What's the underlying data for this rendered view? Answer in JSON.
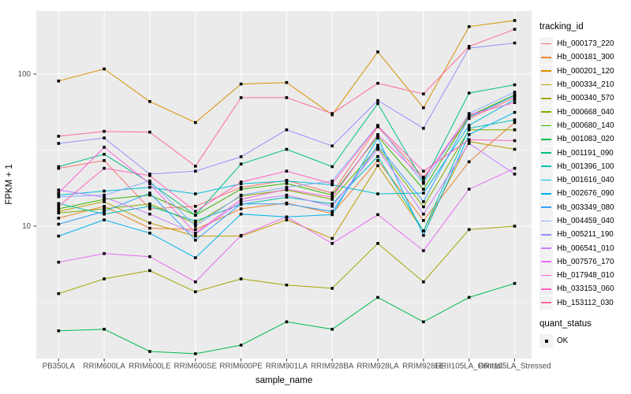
{
  "figure": {
    "panel_bg": "#EBEBEB",
    "grid_color": "#FFFFFF",
    "marker_color": "#000000",
    "tick_color": "#333333",
    "tick_label_color": "#4D4D4D"
  },
  "axes": {
    "x_title": "sample_name",
    "y_title": "FPKM + 1",
    "y_ticks": [
      {
        "label": "10",
        "value": 10
      },
      {
        "label": "100",
        "value": 100
      }
    ],
    "y_minor_grid": [
      3.162,
      31.62
    ]
  },
  "legend": {
    "tracking_title": "tracking_id",
    "quant_title": "quant_status",
    "quant_items": [
      {
        "label": "OK"
      }
    ]
  },
  "chart_data": {
    "type": "line",
    "log_y": true,
    "ylabel": "FPKM + 1",
    "xlabel": "sample_name",
    "y_axis_breaks": [
      10,
      100
    ],
    "y_range_approx": [
      1.35,
      260
    ],
    "x_categories": [
      "PB350LA",
      "RRIM600LA",
      "RRIM600LE",
      "RRIM600SE",
      "RRIM600PE",
      "RRIM901LA",
      "RRIM928BA",
      "RRIM928LA",
      "RRIM928LE",
      "RRII105LA_Control",
      "RRII105LA_Stressed"
    ],
    "series": [
      {
        "name": "Hb_000173_220",
        "color": "#F8766D",
        "values": [
          24,
          27,
          13,
          13.5,
          18,
          20,
          16.5,
          45,
          21,
          51,
          70
        ]
      },
      {
        "name": "Hb_000181_300",
        "color": "#EA8331",
        "values": [
          11.3,
          13.5,
          9.7,
          9.5,
          13,
          14.2,
          12.1,
          27,
          10.9,
          26.5,
          48
        ]
      },
      {
        "name": "Hb_000201_120",
        "color": "#D89000",
        "values": [
          90,
          108,
          66,
          48,
          86,
          88,
          54,
          140,
          60,
          205,
          225
        ]
      },
      {
        "name": "Hb_000334_210",
        "color": "#C09B00",
        "values": [
          12.5,
          14.5,
          10.5,
          8.6,
          8.6,
          11,
          8.3,
          25,
          9.3,
          36,
          32
        ]
      },
      {
        "name": "Hb_000340_570",
        "color": "#A3A500",
        "values": [
          3.6,
          4.5,
          5.1,
          3.7,
          4.5,
          4.1,
          3.9,
          7.7,
          4.3,
          9.5,
          10
        ]
      },
      {
        "name": "Hb_000668_040",
        "color": "#7CAE00",
        "values": [
          12.2,
          13,
          14,
          10.4,
          15.8,
          17.3,
          15,
          33,
          13.4,
          43,
          43
        ]
      },
      {
        "name": "Hb_000680_140",
        "color": "#39B600",
        "values": [
          13,
          15,
          16,
          11.8,
          17.5,
          19.1,
          16,
          39,
          17.5,
          53,
          73
        ]
      },
      {
        "name": "Hb_001083_020",
        "color": "#00BB4E",
        "values": [
          2.05,
          2.1,
          1.5,
          1.45,
          1.65,
          2.35,
          2.1,
          3.4,
          2.35,
          3.4,
          4.2
        ]
      },
      {
        "name": "Hb_001191_090",
        "color": "#00C087",
        "values": [
          24.6,
          29.7,
          19.3,
          11.8,
          25.6,
          32,
          24.6,
          64,
          19.5,
          75,
          85
        ]
      },
      {
        "name": "Hb_001396_100",
        "color": "#00C0B2",
        "values": [
          14.1,
          12,
          13.5,
          10.8,
          13.9,
          15.5,
          14,
          28.7,
          9.3,
          44,
          50
        ]
      },
      {
        "name": "Hb_001616_040",
        "color": "#00BCD8",
        "values": [
          16,
          17,
          18,
          16.3,
          19,
          19.8,
          18.7,
          16.3,
          16.5,
          46,
          68
        ]
      },
      {
        "name": "Hb_002676_090",
        "color": "#00B5EE",
        "values": [
          8.6,
          11,
          9,
          6.2,
          12,
          11.5,
          11.9,
          38,
          8.7,
          40,
          56
        ]
      },
      {
        "name": "Hb_003349_080",
        "color": "#35A2FF",
        "values": [
          10.3,
          12.5,
          16.5,
          8.1,
          14,
          14,
          12.5,
          34,
          14.5,
          52,
          72
        ]
      },
      {
        "name": "Hb_004459_040",
        "color": "#85ADFF",
        "values": [
          15.6,
          16,
          19.8,
          10,
          16,
          18,
          19.8,
          46,
          19.1,
          55,
          76
        ]
      },
      {
        "name": "Hb_005211_190",
        "color": "#9590FF",
        "values": [
          35,
          38,
          22,
          23,
          28.6,
          43,
          33.7,
          67,
          44,
          148,
          160
        ]
      },
      {
        "name": "Hb_006541_010",
        "color": "#C77CFF",
        "values": [
          17.3,
          15.5,
          12,
          8.9,
          14.5,
          16,
          13.5,
          32,
          12,
          35,
          22
        ]
      },
      {
        "name": "Hb_007576_170",
        "color": "#E76BF3",
        "values": [
          5.8,
          6.6,
          6.3,
          4.3,
          8.7,
          11.5,
          7.7,
          11.9,
          6.9,
          17.5,
          24
        ]
      },
      {
        "name": "Hb_017948_010",
        "color": "#FA62DB",
        "values": [
          16.5,
          33,
          19,
          9,
          15,
          17.5,
          15.5,
          40,
          20.5,
          54,
          65
        ]
      },
      {
        "name": "Hb_033153_060",
        "color": "#FF62BC",
        "values": [
          13.5,
          24,
          21.5,
          12.5,
          19.5,
          23,
          19,
          45.5,
          23,
          37,
          36.5
        ]
      },
      {
        "name": "Hb_153112_030",
        "color": "#FF6A98",
        "values": [
          39,
          42,
          41.5,
          24.8,
          70,
          70,
          55,
          87,
          74,
          152,
          197
        ]
      }
    ]
  }
}
